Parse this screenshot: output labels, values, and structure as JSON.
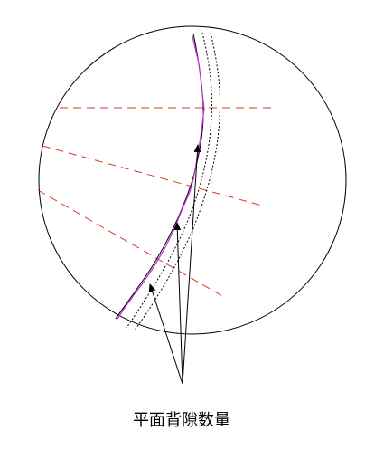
{
  "annotation": {
    "label": "平面背隙数量"
  },
  "colors": {
    "outline": "#000000",
    "reference_lines": "#e0342a",
    "profile_curve": "#c230d0",
    "background": "#ffffff"
  }
}
